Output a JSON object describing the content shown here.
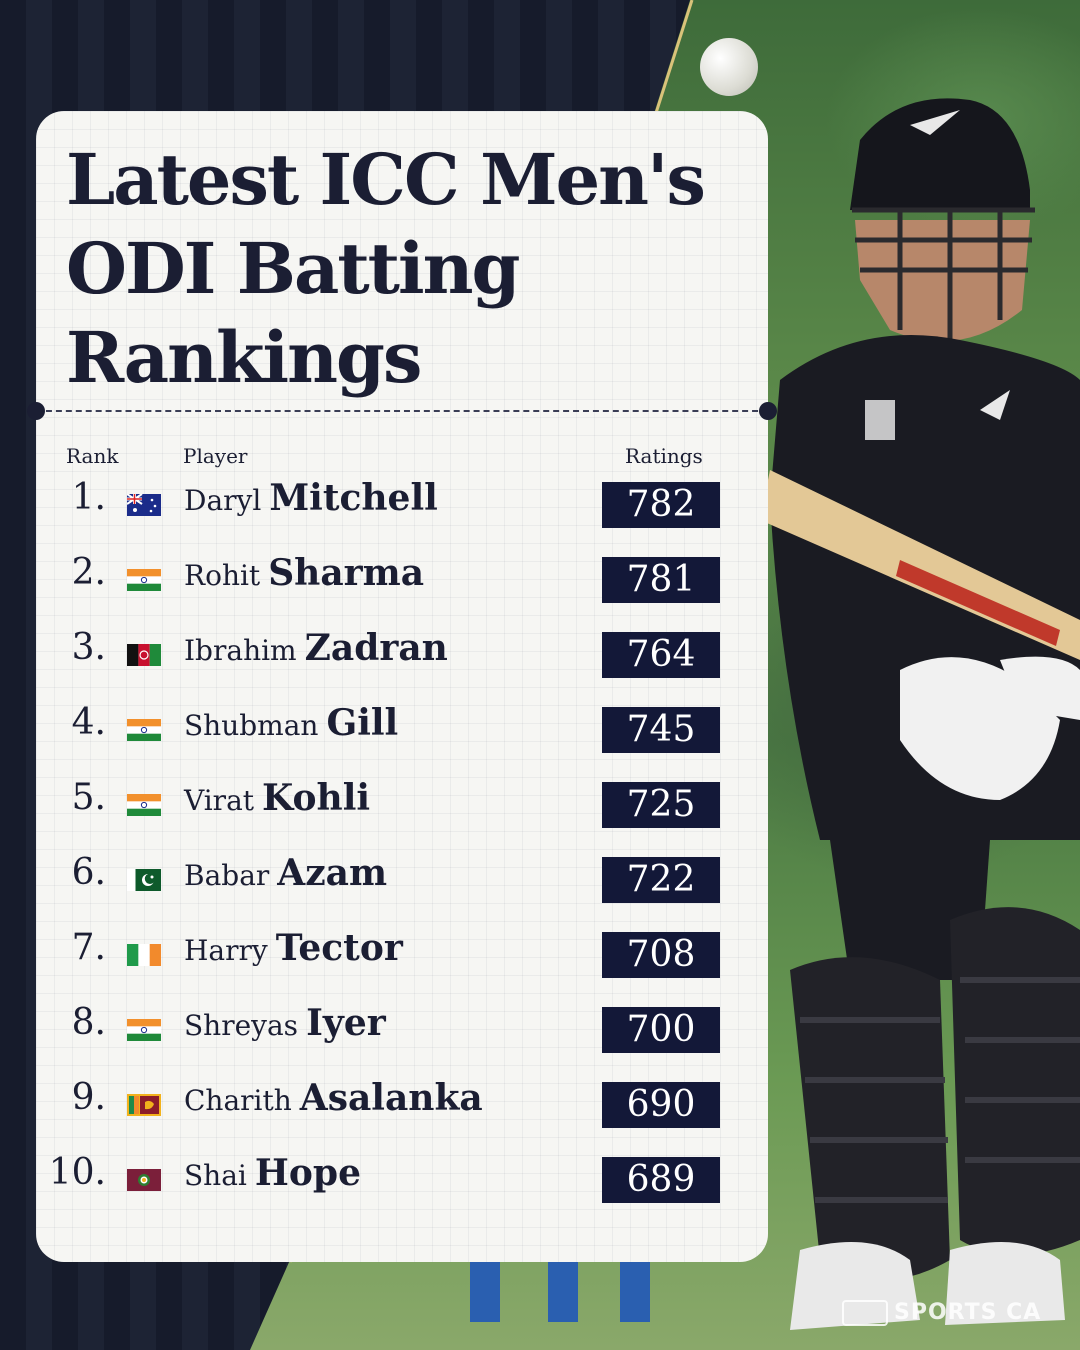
{
  "title_lines": [
    "Latest ICC Men's",
    "ODI Batting",
    "Rankings"
  ],
  "headers": {
    "rank": "Rank",
    "player": "Player",
    "ratings": "Ratings"
  },
  "rows": [
    {
      "rank": "1.",
      "first": "Daryl",
      "last": "Mitchell",
      "rating": "782",
      "flag": "australia-flag-icon"
    },
    {
      "rank": "2.",
      "first": "Rohit",
      "last": "Sharma",
      "rating": "781",
      "flag": "india-flag-icon"
    },
    {
      "rank": "3.",
      "first": "Ibrahim",
      "last": "Zadran",
      "rating": "764",
      "flag": "afghanistan-flag-icon"
    },
    {
      "rank": "4.",
      "first": "Shubman",
      "last": "Gill",
      "rating": "745",
      "flag": "india-flag-icon"
    },
    {
      "rank": "5.",
      "first": "Virat",
      "last": "Kohli",
      "rating": "725",
      "flag": "india-flag-icon"
    },
    {
      "rank": "6.",
      "first": "Babar",
      "last": "Azam",
      "rating": "722",
      "flag": "pakistan-flag-icon"
    },
    {
      "rank": "7.",
      "first": "Harry",
      "last": "Tector",
      "rating": "708",
      "flag": "ireland-flag-icon"
    },
    {
      "rank": "8.",
      "first": "Shreyas",
      "last": "Iyer",
      "rating": "700",
      "flag": "india-flag-icon"
    },
    {
      "rank": "9.",
      "first": "Charith",
      "last": "Asalanka",
      "rating": "690",
      "flag": "sri-lanka-flag-icon"
    },
    {
      "rank": "10.",
      "first": "Shai",
      "last": "Hope",
      "rating": "689",
      "flag": "west-indies-flag-icon"
    }
  ],
  "watermark": "SPORTS CA",
  "colors": {
    "navy": "#131838",
    "ink": "#1b1e33",
    "card": "#f6f6f3",
    "gold": "#d9c27a"
  }
}
